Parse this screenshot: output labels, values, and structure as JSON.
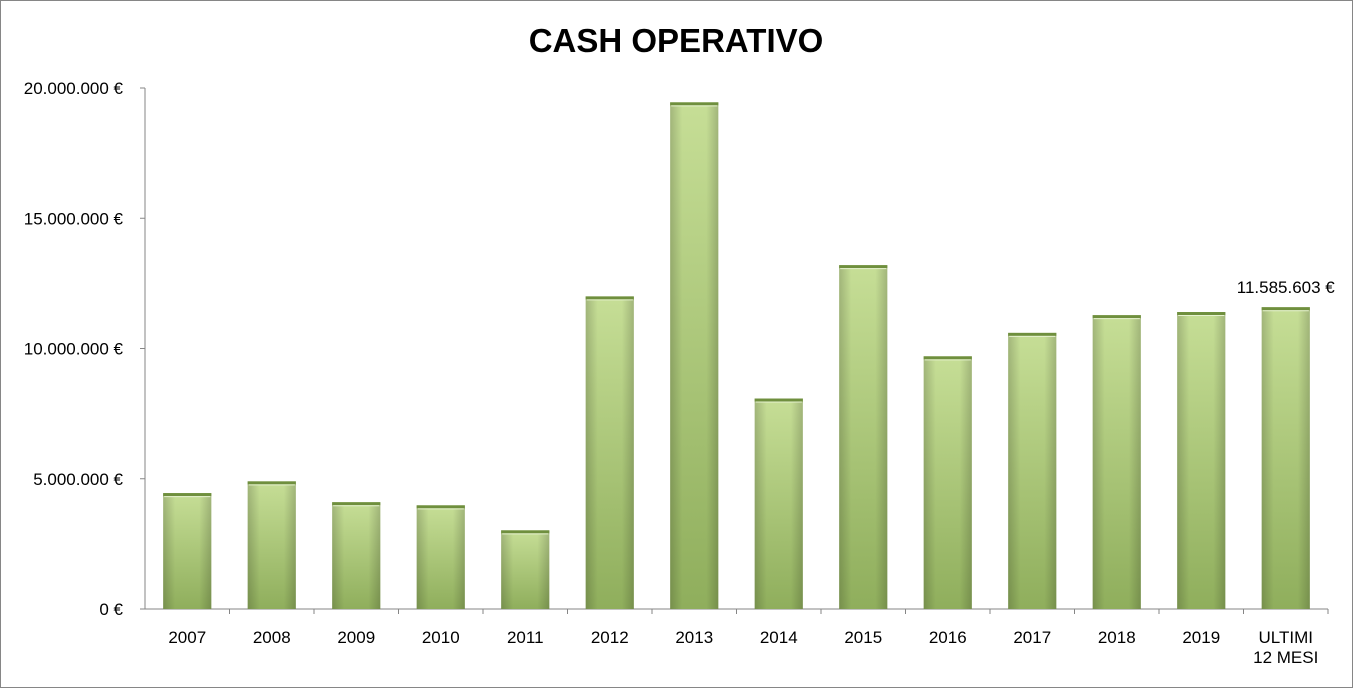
{
  "chart_data": {
    "type": "bar",
    "title": "CASH OPERATIVO",
    "categories": [
      "2007",
      "2008",
      "2009",
      "2010",
      "2011",
      "2012",
      "2013",
      "2014",
      "2015",
      "2016",
      "2017",
      "2018",
      "2019",
      "ULTIMI 12 MESI"
    ],
    "values": [
      4450000,
      4900000,
      4100000,
      3980000,
      3020000,
      12000000,
      19450000,
      8080000,
      13200000,
      9700000,
      10600000,
      11280000,
      11400000,
      11585603
    ],
    "ylim": [
      0,
      20000000
    ],
    "yticks": [
      0,
      5000000,
      10000000,
      15000000,
      20000000
    ],
    "ytick_labels": [
      "0 €",
      "5.000.000 €",
      "10.000.000 €",
      "15.000.000 €",
      "20.000.000 €"
    ],
    "data_labels": [
      {
        "index": 13,
        "text": "11.585.603 €"
      }
    ],
    "bar_color": "#b5d07f",
    "grid": false,
    "legend": "none"
  }
}
